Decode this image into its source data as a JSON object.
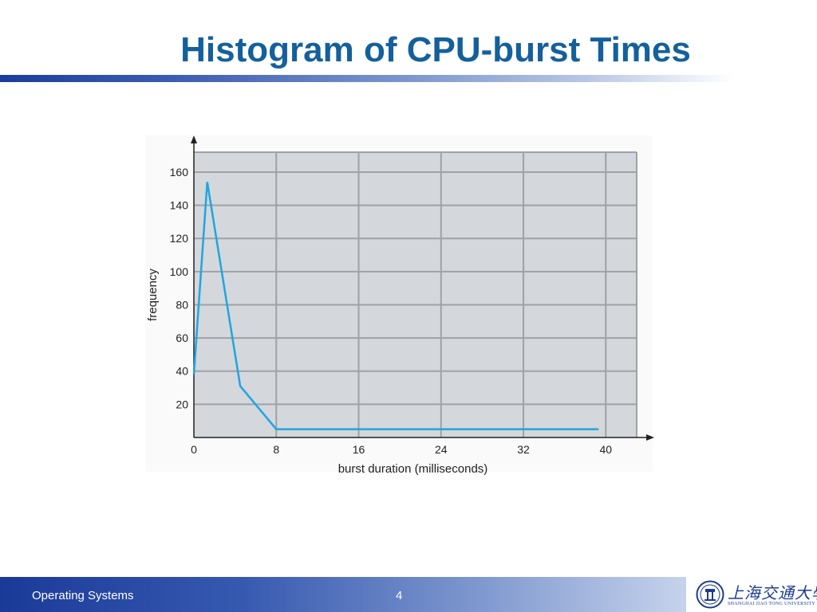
{
  "slide": {
    "title": "Histogram of CPU-burst Times",
    "footer_left": "Operating Systems",
    "page_number": "4",
    "logo": {
      "cn_name": "上海交通大學",
      "en_name": "SHANGHAI JIAO TONG UNIVERSITY"
    }
  },
  "colors": {
    "title": "#14609c",
    "plot_bg": "#d4d7db",
    "grid": "#9ea2a6",
    "line": "#1ea6e0",
    "axis": "#222222"
  },
  "chart_data": {
    "type": "line",
    "title": "",
    "xlabel": "burst duration (milliseconds)",
    "ylabel": "frequency",
    "xlim": [
      0,
      43
    ],
    "ylim": [
      0,
      172
    ],
    "xticks": [
      0,
      8,
      16,
      24,
      32,
      40
    ],
    "xtick_labels": [
      "0",
      "8",
      "16",
      "24",
      "32",
      "40"
    ],
    "yticks": [
      20,
      40,
      60,
      80,
      100,
      120,
      140,
      160
    ],
    "ytick_labels": [
      "20",
      "40",
      "60",
      "80",
      "100",
      "120",
      "140",
      "160"
    ],
    "grid": true,
    "series": [
      {
        "x": [
          0,
          1.3,
          4.5,
          8,
          39.3
        ],
        "y": [
          38,
          154,
          31,
          5,
          5
        ]
      }
    ]
  }
}
